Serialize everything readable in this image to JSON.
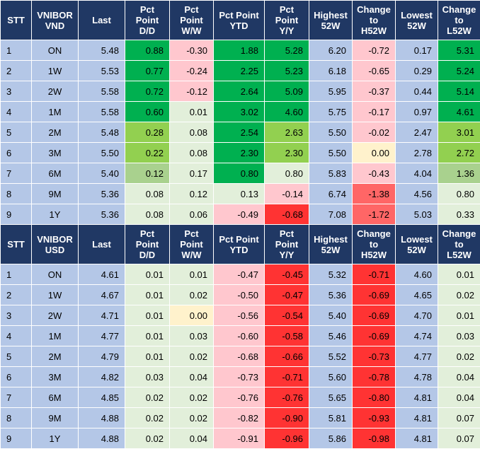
{
  "headers": [
    "STT",
    "VNIBOR\nVND",
    "Last",
    "Pct\nPoint\nD/D",
    "Pct\nPoint\nW/W",
    "Pct Point\nYTD",
    "Pct\nPoint\nY/Y",
    "Highest\n52W",
    "Change\nto\nH52W",
    "Lowest\n52W",
    "Change\nto\nL52W"
  ],
  "headers_usd": [
    "STT",
    "VNIBOR\nUSD",
    "Last",
    "Pct\nPoint\nD/D",
    "Pct\nPoint\nW/W",
    "Pct Point\nYTD",
    "Pct\nPoint\nY/Y",
    "Highest\n52W",
    "Change\nto\nH52W",
    "Lowest\n52W",
    "Change\nto\nL52W"
  ],
  "colors": {
    "header_bg": "#203864",
    "blue_cell": "#b4c7e7",
    "dark_green": "#00b050",
    "mid_green": "#92d050",
    "light_green": "#a9d18e",
    "pale_green": "#e2efda",
    "pale_red": "#ffc7ce",
    "mid_red": "#ff9999",
    "red": "#ff3333",
    "pale_yellow": "#fff2cc"
  },
  "vnd_rows": [
    {
      "stt": "1",
      "tenor": "ON",
      "last": "5.48",
      "dd": "0.88",
      "ww": "-0.30",
      "ytd": "1.88",
      "yy": "5.28",
      "h52": "6.20",
      "ch52": "-0.72",
      "l52": "0.17",
      "cl52": "5.31",
      "bg": [
        "#b4c7e7",
        "#b4c7e7",
        "#b4c7e7",
        "#00b050",
        "#ffc7ce",
        "#00b050",
        "#00b050",
        "#b4c7e7",
        "#ffc7ce",
        "#b4c7e7",
        "#00b050"
      ]
    },
    {
      "stt": "2",
      "tenor": "1W",
      "last": "5.53",
      "dd": "0.77",
      "ww": "-0.24",
      "ytd": "2.25",
      "yy": "5.23",
      "h52": "6.18",
      "ch52": "-0.65",
      "l52": "0.29",
      "cl52": "5.24",
      "bg": [
        "#b4c7e7",
        "#b4c7e7",
        "#b4c7e7",
        "#00b050",
        "#ffc7ce",
        "#00b050",
        "#00b050",
        "#b4c7e7",
        "#ffc7ce",
        "#b4c7e7",
        "#00b050"
      ]
    },
    {
      "stt": "3",
      "tenor": "2W",
      "last": "5.58",
      "dd": "0.72",
      "ww": "-0.12",
      "ytd": "2.64",
      "yy": "5.09",
      "h52": "5.95",
      "ch52": "-0.37",
      "l52": "0.44",
      "cl52": "5.14",
      "bg": [
        "#b4c7e7",
        "#b4c7e7",
        "#b4c7e7",
        "#00b050",
        "#ffc7ce",
        "#00b050",
        "#00b050",
        "#b4c7e7",
        "#ffc7ce",
        "#b4c7e7",
        "#00b050"
      ]
    },
    {
      "stt": "4",
      "tenor": "1M",
      "last": "5.58",
      "dd": "0.60",
      "ww": "0.01",
      "ytd": "3.02",
      "yy": "4.60",
      "h52": "5.75",
      "ch52": "-0.17",
      "l52": "0.97",
      "cl52": "4.61",
      "bg": [
        "#b4c7e7",
        "#b4c7e7",
        "#b4c7e7",
        "#00b050",
        "#e2efda",
        "#00b050",
        "#00b050",
        "#b4c7e7",
        "#ffc7ce",
        "#b4c7e7",
        "#00b050"
      ]
    },
    {
      "stt": "5",
      "tenor": "2M",
      "last": "5.48",
      "dd": "0.28",
      "ww": "0.08",
      "ytd": "2.54",
      "yy": "2.63",
      "h52": "5.50",
      "ch52": "-0.02",
      "l52": "2.47",
      "cl52": "3.01",
      "bg": [
        "#b4c7e7",
        "#b4c7e7",
        "#b4c7e7",
        "#92d050",
        "#e2efda",
        "#00b050",
        "#92d050",
        "#b4c7e7",
        "#ffc7ce",
        "#b4c7e7",
        "#92d050"
      ]
    },
    {
      "stt": "6",
      "tenor": "3M",
      "last": "5.50",
      "dd": "0.22",
      "ww": "0.08",
      "ytd": "2.30",
      "yy": "2.30",
      "h52": "5.50",
      "ch52": "0.00",
      "l52": "2.78",
      "cl52": "2.72",
      "bg": [
        "#b4c7e7",
        "#b4c7e7",
        "#b4c7e7",
        "#92d050",
        "#e2efda",
        "#00b050",
        "#92d050",
        "#b4c7e7",
        "#fff2cc",
        "#b4c7e7",
        "#92d050"
      ]
    },
    {
      "stt": "7",
      "tenor": "6M",
      "last": "5.40",
      "dd": "0.12",
      "ww": "0.17",
      "ytd": "0.80",
      "yy": "0.80",
      "h52": "5.83",
      "ch52": "-0.43",
      "l52": "4.04",
      "cl52": "1.36",
      "bg": [
        "#b4c7e7",
        "#b4c7e7",
        "#b4c7e7",
        "#a9d18e",
        "#e2efda",
        "#00b050",
        "#e2efda",
        "#b4c7e7",
        "#ffc7ce",
        "#b4c7e7",
        "#a9d18e"
      ]
    },
    {
      "stt": "8",
      "tenor": "9M",
      "last": "5.36",
      "dd": "0.08",
      "ww": "0.12",
      "ytd": "0.13",
      "yy": "-0.14",
      "h52": "6.74",
      "ch52": "-1.38",
      "l52": "4.56",
      "cl52": "0.80",
      "bg": [
        "#b4c7e7",
        "#b4c7e7",
        "#b4c7e7",
        "#e2efda",
        "#e2efda",
        "#e2efda",
        "#ffc7ce",
        "#b4c7e7",
        "#ff6666",
        "#b4c7e7",
        "#e2efda"
      ]
    },
    {
      "stt": "9",
      "tenor": "1Y",
      "last": "5.36",
      "dd": "0.08",
      "ww": "0.06",
      "ytd": "-0.49",
      "yy": "-0.68",
      "h52": "7.08",
      "ch52": "-1.72",
      "l52": "5.03",
      "cl52": "0.33",
      "bg": [
        "#b4c7e7",
        "#b4c7e7",
        "#b4c7e7",
        "#e2efda",
        "#e2efda",
        "#ffc7ce",
        "#ff3333",
        "#b4c7e7",
        "#ff6666",
        "#b4c7e7",
        "#e2efda"
      ]
    }
  ],
  "usd_rows": [
    {
      "stt": "1",
      "tenor": "ON",
      "last": "4.61",
      "dd": "0.01",
      "ww": "0.01",
      "ytd": "-0.47",
      "yy": "-0.45",
      "h52": "5.32",
      "ch52": "-0.71",
      "l52": "4.60",
      "cl52": "0.01",
      "bg": [
        "#b4c7e7",
        "#b4c7e7",
        "#b4c7e7",
        "#e2efda",
        "#e2efda",
        "#ffc7ce",
        "#ff3333",
        "#b4c7e7",
        "#ff3333",
        "#b4c7e7",
        "#e2efda"
      ]
    },
    {
      "stt": "2",
      "tenor": "1W",
      "last": "4.67",
      "dd": "0.01",
      "ww": "0.02",
      "ytd": "-0.50",
      "yy": "-0.47",
      "h52": "5.36",
      "ch52": "-0.69",
      "l52": "4.65",
      "cl52": "0.02",
      "bg": [
        "#b4c7e7",
        "#b4c7e7",
        "#b4c7e7",
        "#e2efda",
        "#e2efda",
        "#ffc7ce",
        "#ff3333",
        "#b4c7e7",
        "#ff3333",
        "#b4c7e7",
        "#e2efda"
      ]
    },
    {
      "stt": "3",
      "tenor": "2W",
      "last": "4.71",
      "dd": "0.01",
      "ww": "0.00",
      "ytd": "-0.56",
      "yy": "-0.54",
      "h52": "5.40",
      "ch52": "-0.69",
      "l52": "4.70",
      "cl52": "0.01",
      "bg": [
        "#b4c7e7",
        "#b4c7e7",
        "#b4c7e7",
        "#e2efda",
        "#fff2cc",
        "#ffc7ce",
        "#ff3333",
        "#b4c7e7",
        "#ff3333",
        "#b4c7e7",
        "#e2efda"
      ]
    },
    {
      "stt": "4",
      "tenor": "1M",
      "last": "4.77",
      "dd": "0.01",
      "ww": "0.03",
      "ytd": "-0.60",
      "yy": "-0.58",
      "h52": "5.46",
      "ch52": "-0.69",
      "l52": "4.74",
      "cl52": "0.03",
      "bg": [
        "#b4c7e7",
        "#b4c7e7",
        "#b4c7e7",
        "#e2efda",
        "#e2efda",
        "#ffc7ce",
        "#ff3333",
        "#b4c7e7",
        "#ff3333",
        "#b4c7e7",
        "#e2efda"
      ]
    },
    {
      "stt": "5",
      "tenor": "2M",
      "last": "4.79",
      "dd": "0.01",
      "ww": "0.02",
      "ytd": "-0.68",
      "yy": "-0.66",
      "h52": "5.52",
      "ch52": "-0.73",
      "l52": "4.77",
      "cl52": "0.02",
      "bg": [
        "#b4c7e7",
        "#b4c7e7",
        "#b4c7e7",
        "#e2efda",
        "#e2efda",
        "#ffc7ce",
        "#ff3333",
        "#b4c7e7",
        "#ff3333",
        "#b4c7e7",
        "#e2efda"
      ]
    },
    {
      "stt": "6",
      "tenor": "3M",
      "last": "4.82",
      "dd": "0.03",
      "ww": "0.04",
      "ytd": "-0.73",
      "yy": "-0.71",
      "h52": "5.60",
      "ch52": "-0.78",
      "l52": "4.78",
      "cl52": "0.04",
      "bg": [
        "#b4c7e7",
        "#b4c7e7",
        "#b4c7e7",
        "#e2efda",
        "#e2efda",
        "#ffc7ce",
        "#ff3333",
        "#b4c7e7",
        "#ff3333",
        "#b4c7e7",
        "#e2efda"
      ]
    },
    {
      "stt": "7",
      "tenor": "6M",
      "last": "4.85",
      "dd": "0.02",
      "ww": "0.02",
      "ytd": "-0.76",
      "yy": "-0.76",
      "h52": "5.65",
      "ch52": "-0.80",
      "l52": "4.81",
      "cl52": "0.04",
      "bg": [
        "#b4c7e7",
        "#b4c7e7",
        "#b4c7e7",
        "#e2efda",
        "#e2efda",
        "#ffc7ce",
        "#ff3333",
        "#b4c7e7",
        "#ff3333",
        "#b4c7e7",
        "#e2efda"
      ]
    },
    {
      "stt": "8",
      "tenor": "9M",
      "last": "4.88",
      "dd": "0.02",
      "ww": "0.02",
      "ytd": "-0.82",
      "yy": "-0.90",
      "h52": "5.81",
      "ch52": "-0.93",
      "l52": "4.81",
      "cl52": "0.07",
      "bg": [
        "#b4c7e7",
        "#b4c7e7",
        "#b4c7e7",
        "#e2efda",
        "#e2efda",
        "#ffc7ce",
        "#ff3333",
        "#b4c7e7",
        "#ff3333",
        "#b4c7e7",
        "#e2efda"
      ]
    },
    {
      "stt": "9",
      "tenor": "1Y",
      "last": "4.88",
      "dd": "0.02",
      "ww": "0.04",
      "ytd": "-0.91",
      "yy": "-0.96",
      "h52": "5.86",
      "ch52": "-0.98",
      "l52": "4.81",
      "cl52": "0.07",
      "bg": [
        "#b4c7e7",
        "#b4c7e7",
        "#b4c7e7",
        "#e2efda",
        "#e2efda",
        "#ffc7ce",
        "#ff3333",
        "#b4c7e7",
        "#ff3333",
        "#b4c7e7",
        "#e2efda"
      ]
    }
  ]
}
